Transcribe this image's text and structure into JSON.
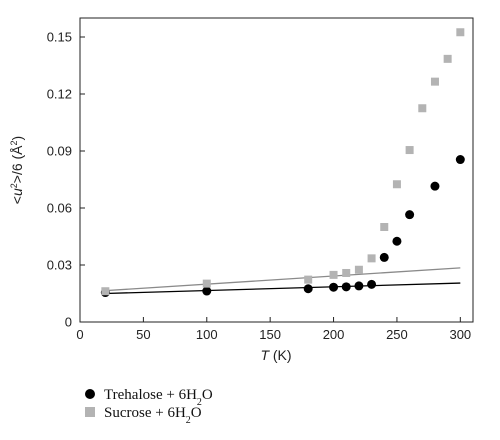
{
  "chart_data": {
    "type": "scatter",
    "xlabel": {
      "italic": "T",
      "rest": " (K)"
    },
    "ylabel": {
      "prefix": "<",
      "var": "u",
      "sup": "2",
      "mid": ">/6 (",
      "unit": "Å",
      "unit_sup": "2",
      "suffix": ")"
    },
    "xlim": [
      0,
      310
    ],
    "ylim": [
      0,
      0.16
    ],
    "xticks": [
      "0",
      "50",
      "100",
      "150",
      "200",
      "250",
      "300"
    ],
    "yticks": [
      "0",
      "0.03",
      "0.06",
      "0.09",
      "0.12",
      "0.15"
    ],
    "grid": false,
    "legend_position": "bottom-left, below plot",
    "series": [
      {
        "name": "Trehalose + 6H₂O",
        "legend": {
          "pre": "Trehalose + 6H",
          "sub": "2",
          "post": "O"
        },
        "marker": "circle",
        "color": "#000000",
        "x": [
          20,
          100,
          180,
          200,
          210,
          220,
          230,
          240,
          250,
          260,
          280,
          300
        ],
        "y": [
          0.0155,
          0.0163,
          0.0175,
          0.0183,
          0.0185,
          0.019,
          0.0198,
          0.034,
          0.0425,
          0.0565,
          0.0715,
          0.0855
        ],
        "fit": {
          "x": [
            20,
            300
          ],
          "y": [
            0.015,
            0.0205
          ],
          "color": "#000000"
        }
      },
      {
        "name": "Sucrose + 6H₂O",
        "legend": {
          "pre": "Sucrose + 6H",
          "sub": "2",
          "post": "O"
        },
        "marker": "square",
        "color": "#b3b3b3",
        "x": [
          20,
          100,
          180,
          200,
          210,
          220,
          230,
          240,
          250,
          260,
          270,
          280,
          290,
          300
        ],
        "y": [
          0.0162,
          0.0202,
          0.0223,
          0.0248,
          0.0258,
          0.0275,
          0.0335,
          0.05,
          0.0725,
          0.0905,
          0.1125,
          0.1265,
          0.1385,
          0.1525
        ],
        "fit": {
          "x": [
            20,
            300
          ],
          "y": [
            0.0165,
            0.0285
          ],
          "color": "#8a8a8a"
        }
      }
    ]
  }
}
